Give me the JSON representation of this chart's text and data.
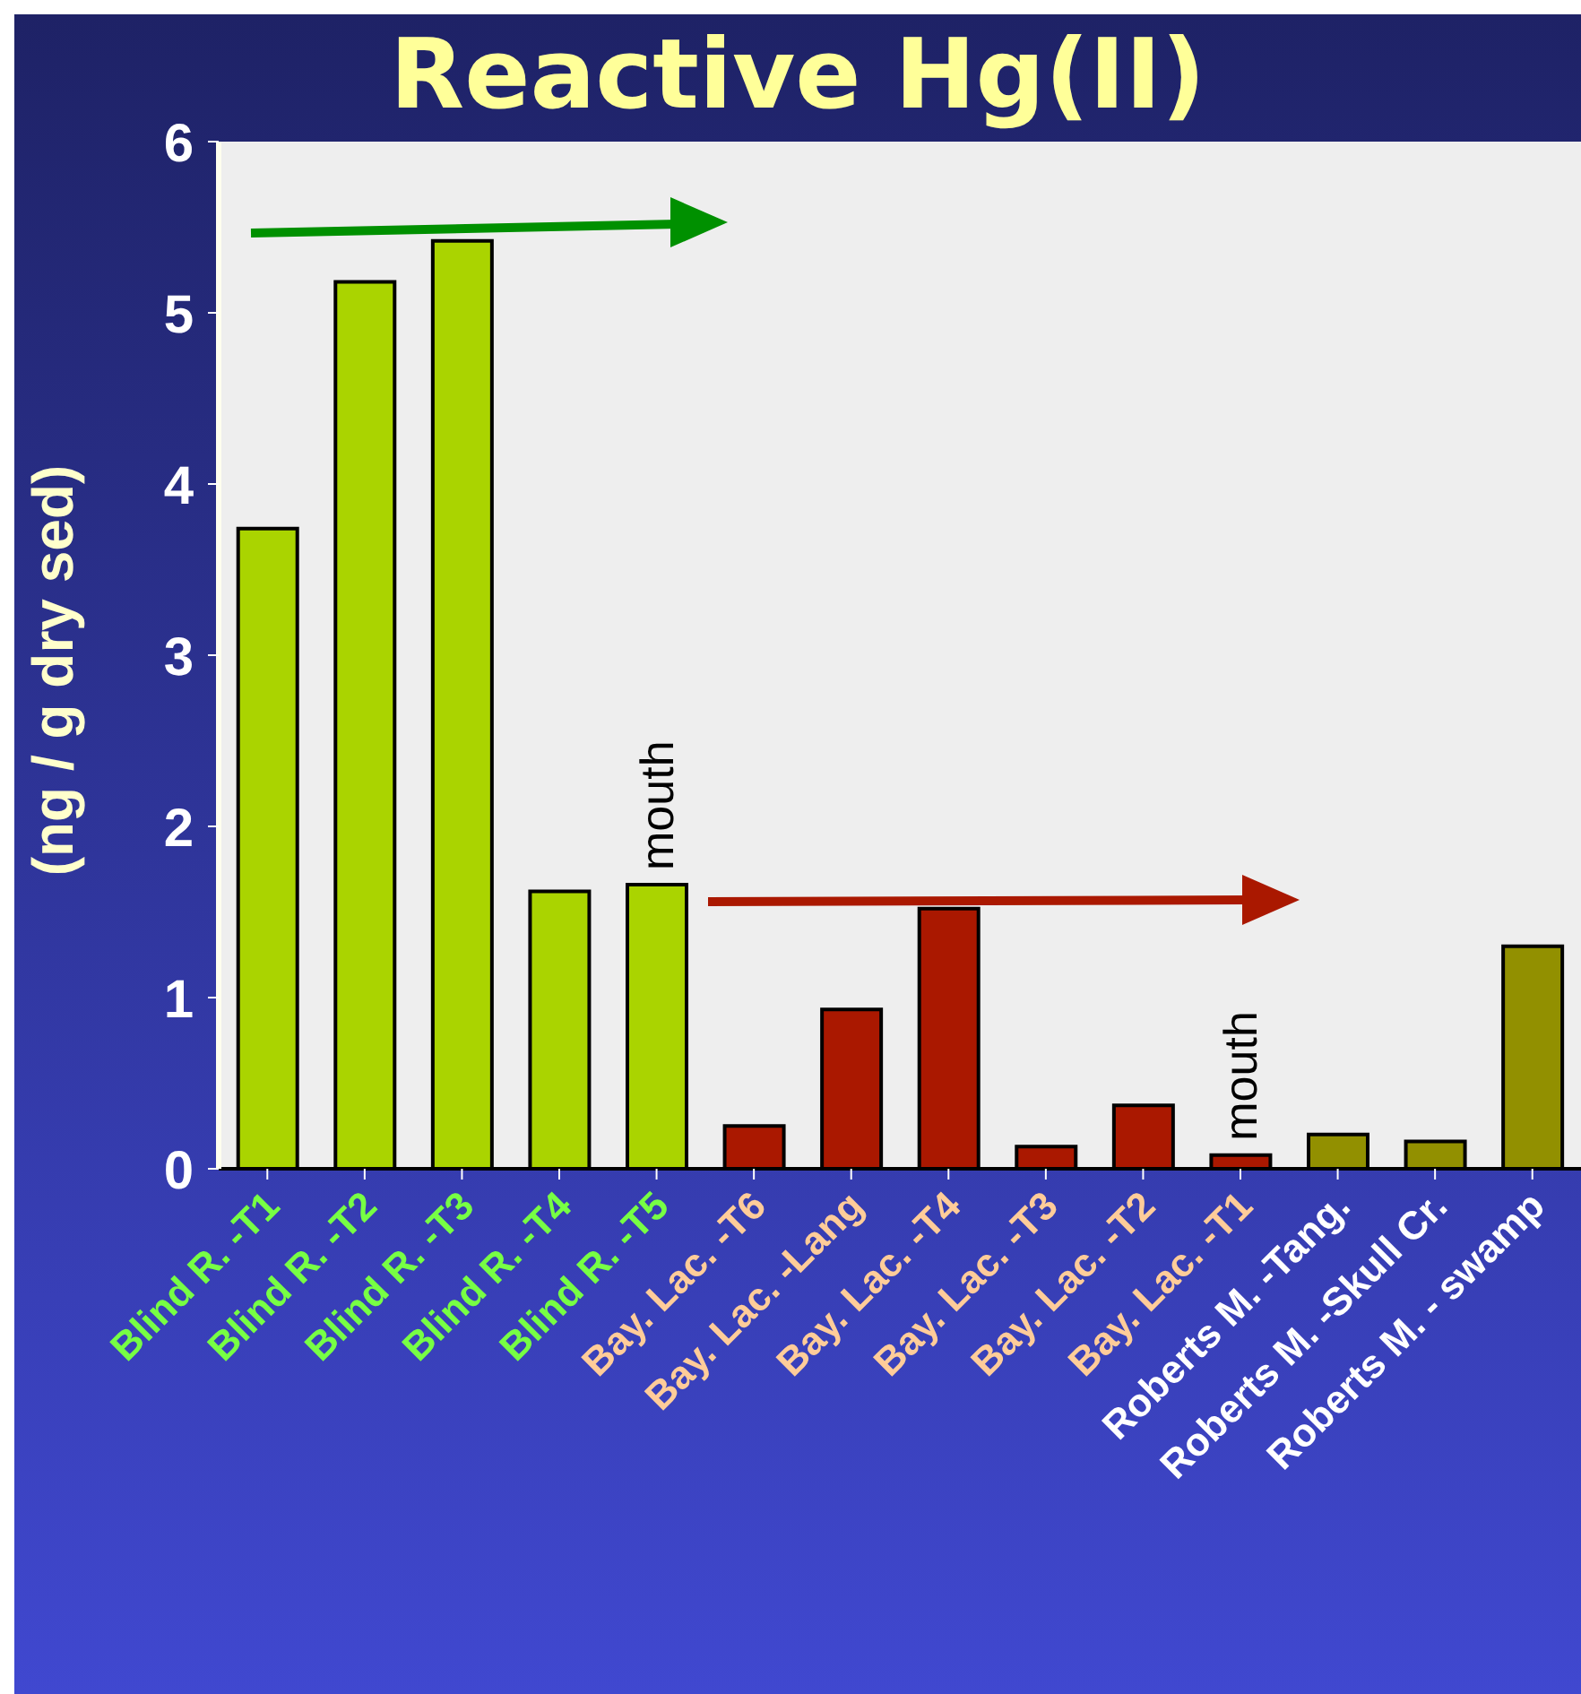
{
  "chart_data": {
    "type": "bar",
    "title": "Reactive Hg(II)",
    "ylabel": "(ng / g dry sed)",
    "categories": [
      "Blind R. -T1",
      "Blind R. -T2",
      "Blind R. -T3",
      "Blind R. -T4",
      "Blind R. -T5",
      "Bay. Lac. -T6",
      "Bay. Lac. -Lang",
      "Bay. Lac. -T4",
      "Bay. Lac. -T3",
      "Bay. Lac. -T2",
      "Bay. Lac. -T1",
      "Roberts M. -Tang.",
      "Roberts M. -Skull Cr.",
      "Roberts M. - swamp"
    ],
    "values": [
      3.74,
      5.18,
      5.42,
      1.62,
      1.66,
      0.25,
      0.93,
      1.52,
      0.13,
      0.37,
      0.08,
      0.2,
      0.16,
      1.3
    ],
    "colors": [
      "#aad400",
      "#aad400",
      "#aad400",
      "#aad400",
      "#aad400",
      "#aa1800",
      "#aa1800",
      "#aa1800",
      "#aa1800",
      "#aa1800",
      "#aa1800",
      "#929000",
      "#929000",
      "#929000"
    ],
    "ylim": [
      0,
      6
    ],
    "yticks": [
      0,
      1,
      2,
      3,
      4,
      5,
      6
    ],
    "annotations": [
      {
        "text": "mouth",
        "x": "Blind R. -T5",
        "y": 1.66
      },
      {
        "text": "mouth",
        "x": "Bay. Lac. -T1",
        "y": 0.08
      }
    ]
  }
}
